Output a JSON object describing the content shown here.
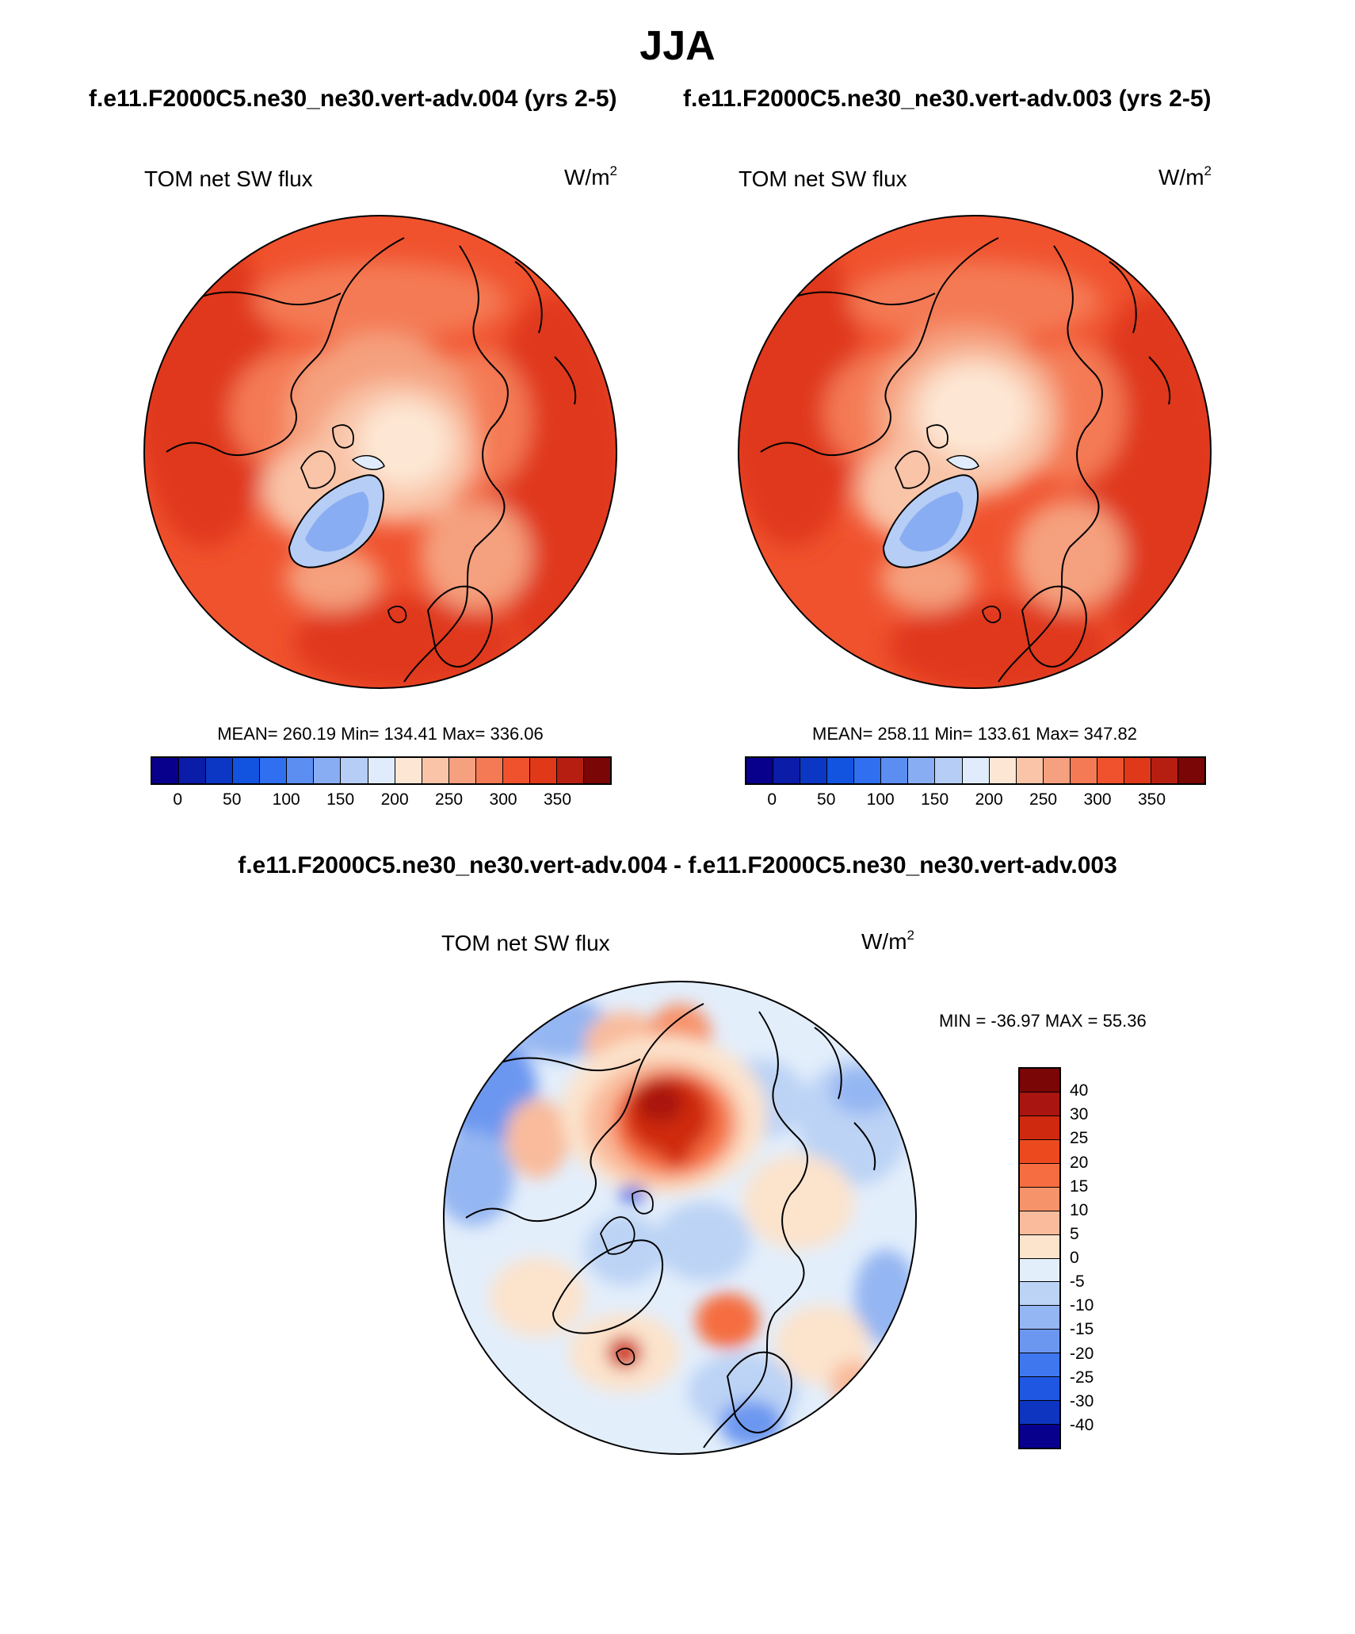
{
  "title": "JJA",
  "subtitle_left": "f.e11.F2000C5.ne30_ne30.vert-adv.004 (yrs 2-5)",
  "subtitle_right": "f.e11.F2000C5.ne30_ne30.vert-adv.003 (yrs 2-5)",
  "diff_title": "f.e11.F2000C5.ne30_ne30.vert-adv.004 - f.e11.F2000C5.ne30_ne30.vert-adv.003",
  "panels": {
    "left": {
      "title": "TOM net SW flux",
      "unit_base": "W/m",
      "unit_exp": "2",
      "stats": "MEAN= 260.19  Min= 134.41  Max= 336.06"
    },
    "right": {
      "title": "TOM net SW flux",
      "unit_base": "W/m",
      "unit_exp": "2",
      "stats": "MEAN= 258.11  Min= 133.61  Max= 347.82"
    },
    "diff": {
      "title": "TOM net SW flux",
      "unit_base": "W/m",
      "unit_exp": "2",
      "stats": "MIN = -36.97 MAX =  55.36"
    }
  },
  "colorbar_main": {
    "colors": [
      "#08008c",
      "#0a1ca8",
      "#0c37c4",
      "#1254e0",
      "#2f6ff0",
      "#5c8ef2",
      "#89adf2",
      "#b6cdf5",
      "#e0ecfb",
      "#fde7d4",
      "#f9c4a8",
      "#f5a07e",
      "#f47a55",
      "#f0522e",
      "#e0391a",
      "#b51e10",
      "#7a0606"
    ],
    "ticks": [
      "0",
      "50",
      "100",
      "150",
      "200",
      "250",
      "300",
      "350"
    ]
  },
  "colorbar_diff": {
    "colors": [
      "#7a0606",
      "#a91510",
      "#cf2a0f",
      "#ec4a1e",
      "#f56d40",
      "#f7936b",
      "#f9bb9b",
      "#fce3cc",
      "#e3eefb",
      "#bcd3f5",
      "#94b6f2",
      "#6c97f0",
      "#3f78ee",
      "#1f57e2",
      "#0d35c0",
      "#08008c"
    ],
    "ticks": [
      "40",
      "30",
      "25",
      "20",
      "15",
      "10",
      "5",
      "0",
      "-5",
      "-10",
      "-15",
      "-20",
      "-25",
      "-30",
      "-40"
    ]
  }
}
